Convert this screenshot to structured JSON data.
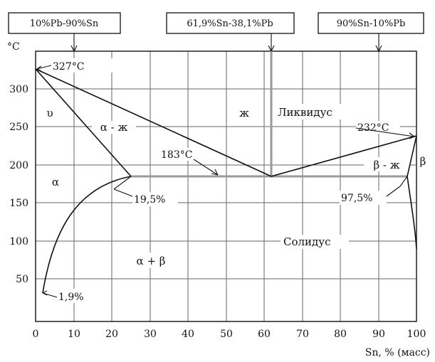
{
  "diagram": {
    "title_boxes": [
      {
        "text": "10%Pb-90%Sn"
      },
      {
        "text": "61,9%Sn-38,1%Pb"
      },
      {
        "text": "90%Sn-10%Pb"
      }
    ],
    "y_unit": "°C",
    "x_label": "Sn, % (масс)",
    "x_ticks": [
      "0",
      "10",
      "20",
      "30",
      "40",
      "50",
      "60",
      "70",
      "80",
      "90",
      "100"
    ],
    "y_ticks": [
      "50",
      "100",
      "150",
      "200",
      "250",
      "300"
    ],
    "phase_labels": {
      "liquid": "ж",
      "alpha_liquid": "α - ж",
      "beta_liquid": "β - ж",
      "alpha": "α",
      "beta": "β",
      "alpha_beta": "α + β",
      "upsilon": "υ"
    },
    "annotations": {
      "pb_melt": "327°C",
      "sn_melt": "232°C",
      "eutectic_t": "183°C",
      "alpha_max": "19,5%",
      "beta_max": "97,5%",
      "alpha_min": "1,9%",
      "liquidus": "Ликвидус",
      "solidus": "Солидус"
    }
  },
  "chart_data": {
    "type": "phase-diagram",
    "xlabel": "Sn, % (масс)",
    "ylabel": "°C",
    "xlim": [
      0,
      100
    ],
    "ylim": [
      0,
      350
    ],
    "key_points": [
      {
        "x": 0,
        "y": 327
      },
      {
        "x": 100,
        "y": 232
      },
      {
        "x": 61.9,
        "y": 183
      },
      {
        "x": 19.5,
        "y": 183
      },
      {
        "x": 97.5,
        "y": 183
      },
      {
        "x": 1.9,
        "y": 30
      }
    ]
  }
}
